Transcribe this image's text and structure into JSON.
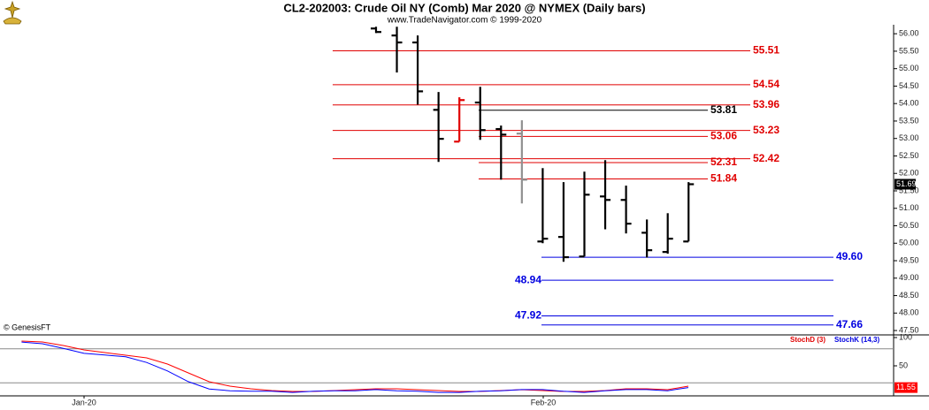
{
  "chart_data": [
    {
      "type": "ohlc",
      "title": "CL2-202003:  Crude Oil NY (Comb) Mar 2020 @ NYMEX  (Daily bars)",
      "subtitle": "www.TradeNavigator.com © 1999-2020",
      "credit": "© GenesisFT",
      "ylim": [
        47.4,
        56.46
      ],
      "yticks": [
        {
          "value": 47.5,
          "label": "47.50"
        },
        {
          "value": 48,
          "label": "48.00"
        },
        {
          "value": 48.5,
          "label": "48.50"
        },
        {
          "value": 49,
          "label": "49.00"
        },
        {
          "value": 49.5,
          "label": "49.50"
        },
        {
          "value": 50,
          "label": "50.00"
        },
        {
          "value": 50.5,
          "label": "50.50"
        },
        {
          "value": 51,
          "label": "51.00"
        },
        {
          "value": 51.5,
          "label": "51.50"
        },
        {
          "value": 52,
          "label": "52.00"
        },
        {
          "value": 52.5,
          "label": "52.50"
        },
        {
          "value": 53,
          "label": "53.00"
        },
        {
          "value": 53.5,
          "label": "53.50"
        },
        {
          "value": 54,
          "label": "54.00"
        },
        {
          "value": 54.5,
          "label": "54.50"
        },
        {
          "value": 55,
          "label": "55.00"
        },
        {
          "value": 55.5,
          "label": "55.50"
        },
        {
          "value": 56,
          "label": "56.00"
        }
      ],
      "series": [
        {
          "open": [
            56.15,
            55.95,
            55.75,
            53.82,
            52.91,
            54.03,
            53.27,
            53.14,
            50.05,
            50.18,
            49.62,
            51.34,
            51.24,
            50.3,
            49.75,
            50.05
          ],
          "high": [
            56.2,
            56.2,
            55.95,
            54.33,
            54.18,
            54.48,
            53.37,
            53.52,
            52.15,
            51.75,
            52.05,
            52.38,
            51.65,
            50.68,
            50.86,
            51.75
          ],
          "low": [
            56.02,
            54.89,
            53.97,
            52.33,
            52.91,
            52.96,
            51.82,
            51.14,
            50.0,
            49.47,
            49.62,
            50.4,
            50.28,
            49.59,
            49.7,
            50.05
          ],
          "close": [
            56.05,
            55.75,
            54.35,
            52.99,
            54.1,
            53.24,
            53.11,
            51.82,
            50.13,
            49.6,
            51.39,
            51.24,
            50.56,
            49.8,
            50.13,
            51.69
          ],
          "colors": [
            "#000000",
            "#000000",
            "#000000",
            "#000000",
            "#e00000",
            "#000000",
            "#000000",
            "#909090",
            "#000000",
            "#000000",
            "#000000",
            "#000000",
            "#000000",
            "#000000",
            "#000000",
            "#000000"
          ]
        }
      ],
      "last_price": 51.69,
      "levels": [
        {
          "value": 55.51,
          "color": "#e00000"
        },
        {
          "value": 54.54,
          "color": "#e00000"
        },
        {
          "value": 53.96,
          "color": "#e00000"
        },
        {
          "value": 53.81,
          "color": "#000000"
        },
        {
          "value": 53.23,
          "color": "#e00000"
        },
        {
          "value": 53.06,
          "color": "#e00000"
        },
        {
          "value": 52.42,
          "color": "#e00000"
        },
        {
          "value": 52.31,
          "color": "#e00000"
        },
        {
          "value": 51.84,
          "color": "#e00000"
        },
        {
          "value": 49.6,
          "label": "49.60",
          "color": "#0000e0"
        },
        {
          "value": 48.94,
          "color": "#0000e0"
        },
        {
          "value": 47.92,
          "color": "#0000e0"
        },
        {
          "value": 47.66,
          "color": "#0000e0"
        }
      ]
    },
    {
      "type": "line",
      "ylim": [
        0,
        100
      ],
      "yticks": [
        50,
        100
      ],
      "guide_lines": [
        80,
        20
      ],
      "x_labels": [
        "Jan-20",
        "Feb-20"
      ],
      "series": [
        {
          "name": "StochD (3)",
          "color": "#ff0000",
          "values": [
            93.8,
            92.2,
            85.9,
            78.1,
            73.4,
            68.8,
            64.1,
            53.1,
            37.5,
            21.9,
            14.1,
            9.4,
            6.3,
            4.7,
            4.7,
            6.3,
            7.8,
            9.4,
            9.4,
            7.8,
            6.3,
            4.7,
            4.7,
            6.3,
            7.8,
            6.3,
            4.7,
            4.7,
            6.3,
            9.4,
            9.4,
            7.8,
            14.1
          ]
        },
        {
          "name": "StochK (14,3)",
          "color": "#0000ff",
          "values": [
            92,
            89,
            81,
            72,
            69,
            66,
            56,
            41,
            22,
            9,
            6,
            5,
            5,
            3,
            5,
            6,
            6,
            8,
            6,
            5,
            3,
            3,
            5,
            6,
            8,
            8,
            5,
            3,
            6,
            8,
            8,
            6,
            11.55
          ]
        }
      ],
      "last_value": 11.55
    }
  ]
}
